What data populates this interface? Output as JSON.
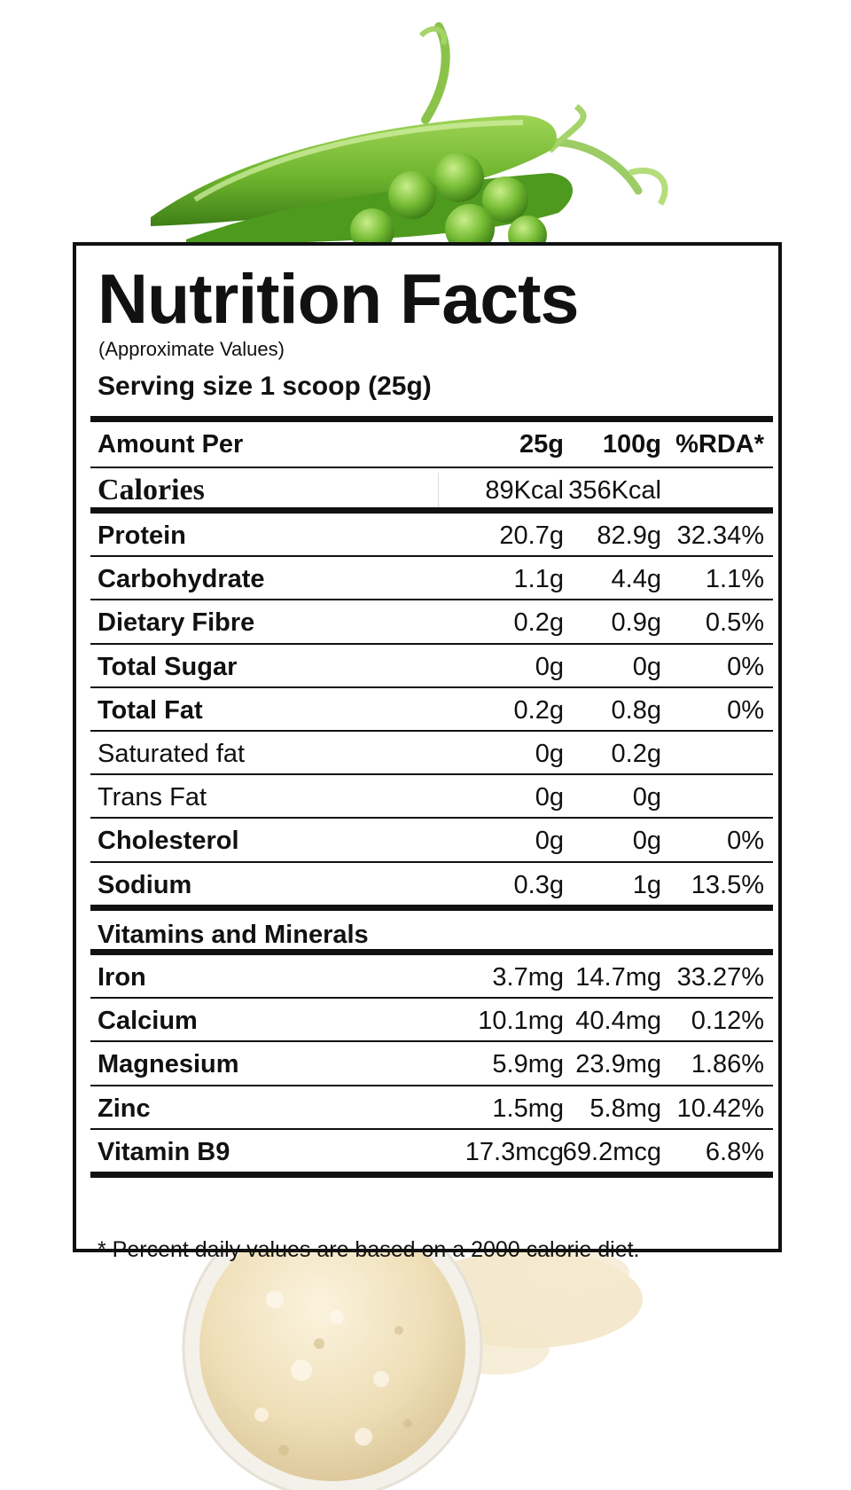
{
  "label": {
    "title": "Nutrition Facts",
    "subtitle": "(Approximate Values)",
    "serving": "Serving size 1 scoop (25g)",
    "header": {
      "name": "Amount Per",
      "col1": "25g",
      "col2": "100g",
      "col3": "%RDA*"
    },
    "calories": {
      "name": "Calories",
      "col1": "89Kcal",
      "col2": "356Kcal",
      "col3": ""
    },
    "nutrients": [
      {
        "name": "Protein",
        "col1": "20.7g",
        "col2": "82.9g",
        "col3": "32.34%"
      },
      {
        "name": "Carbohydrate",
        "col1": "1.1g",
        "col2": "4.4g",
        "col3": "1.1%"
      },
      {
        "name": "Dietary Fibre",
        "col1": "0.2g",
        "col2": "0.9g",
        "col3": "0.5%"
      },
      {
        "name": "Total Sugar",
        "col1": "0g",
        "col2": "0g",
        "col3": "0%"
      },
      {
        "name": "Total Fat",
        "col1": "0.2g",
        "col2": "0.8g",
        "col3": "0%"
      },
      {
        "name": "Saturated fat",
        "col1": "0g",
        "col2": "0.2g",
        "col3": ""
      },
      {
        "name": "Trans Fat",
        "col1": "0g",
        "col2": "0g",
        "col3": ""
      },
      {
        "name": "Cholesterol",
        "col1": "0g",
        "col2": "0g",
        "col3": "0%"
      },
      {
        "name": "Sodium",
        "col1": "0.3g",
        "col2": "1g",
        "col3": "13.5%"
      }
    ],
    "vitamins_heading": "Vitamins and Minerals",
    "vitamins": [
      {
        "name": "Iron",
        "col1": "3.7mg",
        "col2": "14.7mg",
        "col3": "33.27%"
      },
      {
        "name": "Calcium",
        "col1": "10.1mg",
        "col2": "40.4mg",
        "col3": "0.12%"
      },
      {
        "name": "Magnesium",
        "col1": "5.9mg",
        "col2": "23.9mg",
        "col3": "1.86%"
      },
      {
        "name": "Zinc",
        "col1": "1.5mg",
        "col2": "5.8mg",
        "col3": "10.42%"
      },
      {
        "name": "Vitamin B9",
        "col1": "17.3mcg",
        "col2": "69.2mcg",
        "col3": "6.8%"
      }
    ],
    "footnote": "* Percent daily values are based on a 2000 calorie diet."
  },
  "colors": {
    "pea_green": "#6fb52e",
    "pea_dark": "#3f7f17",
    "powder": "#f1e4c4",
    "bowl": "#f4f1ea",
    "ink": "#111111"
  },
  "icons": {
    "top_image": "pea-pods-image",
    "bottom_image": "protein-powder-bowl-image"
  }
}
